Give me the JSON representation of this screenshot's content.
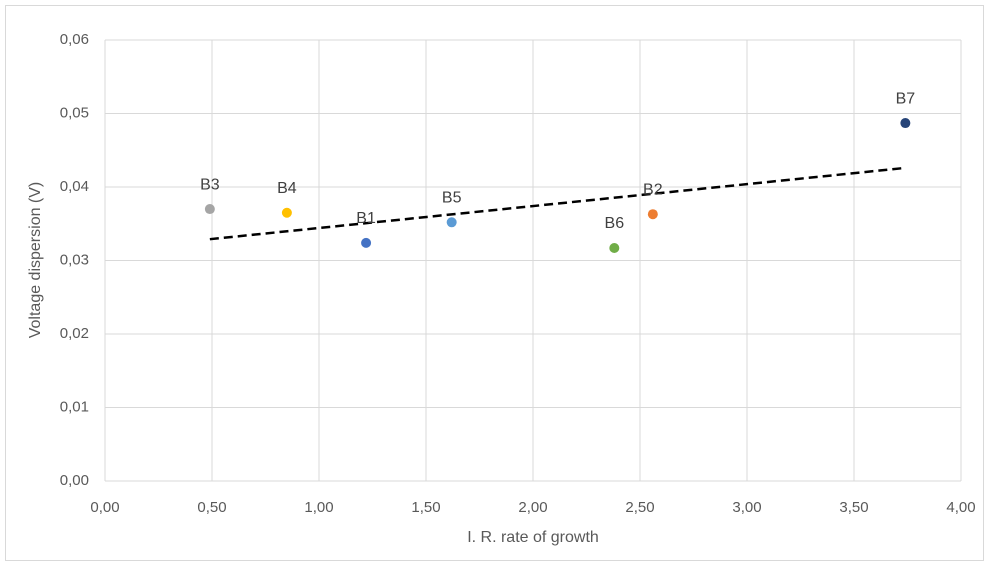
{
  "chart_data": {
    "type": "scatter",
    "xlabel": "I. R. rate of growth",
    "ylabel": "Voltage dispersion (V)",
    "labels": [
      "B3",
      "B4",
      "B1",
      "B5",
      "B6",
      "B2",
      "B7"
    ],
    "x": [
      0.49,
      0.85,
      1.22,
      1.62,
      2.38,
      2.56,
      3.74
    ],
    "values": [
      0.037,
      0.0365,
      0.0324,
      0.0352,
      0.0317,
      0.0363,
      0.0487
    ],
    "colors": [
      "#a5a5a5",
      "#ffc000",
      "#4472c4",
      "#5b9bd5",
      "#70ad47",
      "#ed7d31",
      "#264478"
    ],
    "trendline": {
      "x": [
        0.49,
        3.74
      ],
      "values": [
        0.0329,
        0.0426
      ],
      "color": "#000000",
      "dashed": true
    },
    "xlim": [
      0,
      4
    ],
    "ylim": [
      0,
      0.06
    ],
    "xticks": [
      {
        "value": 0,
        "label": "0,00"
      },
      {
        "value": 0.5,
        "label": "0,50"
      },
      {
        "value": 1,
        "label": "1,00"
      },
      {
        "value": 1.5,
        "label": "1,50"
      },
      {
        "value": 2,
        "label": "2,00"
      },
      {
        "value": 2.5,
        "label": "2,50"
      },
      {
        "value": 3,
        "label": "3,00"
      },
      {
        "value": 3.5,
        "label": "3,50"
      },
      {
        "value": 4,
        "label": "4,00"
      }
    ],
    "yticks": [
      {
        "value": 0,
        "label": "0,00"
      },
      {
        "value": 0.01,
        "label": "0,01"
      },
      {
        "value": 0.02,
        "label": "0,02"
      },
      {
        "value": 0.03,
        "label": "0,03"
      },
      {
        "value": 0.04,
        "label": "0,04"
      },
      {
        "value": 0.05,
        "label": "0,05"
      },
      {
        "value": 0.06,
        "label": "0,06"
      }
    ],
    "grid": true
  }
}
